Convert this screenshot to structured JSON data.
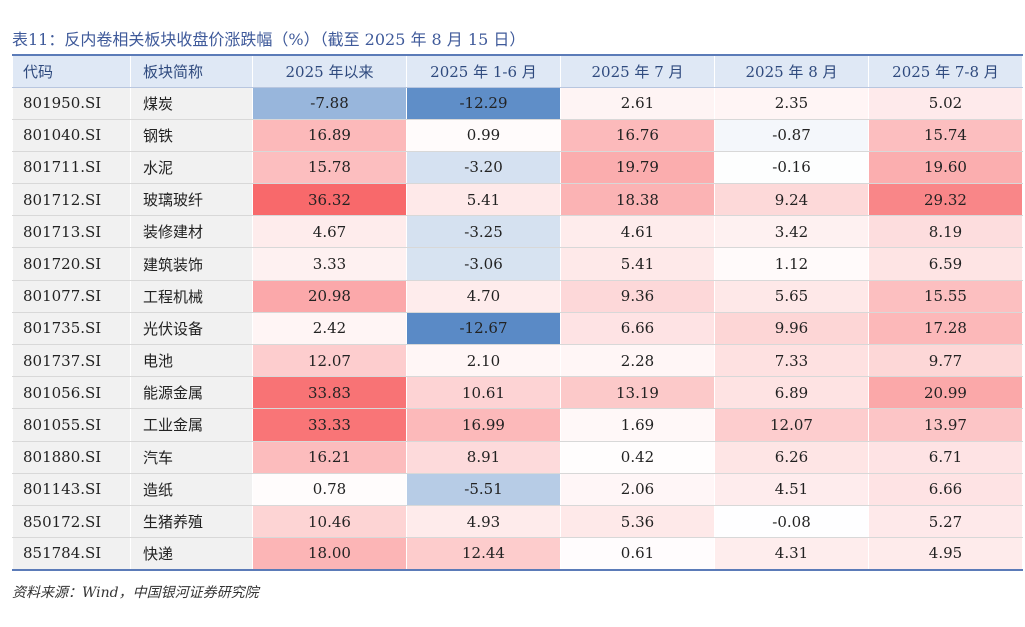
{
  "title": "表11：反内卷相关板块收盘价涨跌幅（%）（截至 2025 年 8 月 15 日）",
  "columns": [
    "代码",
    "板块简称",
    "2025 年以来",
    "2025 年 1-6 月",
    "2025 年 7 月",
    "2025 年 8 月",
    "2025 年 7-8 月"
  ],
  "rows": [
    {
      "code": "801950.SI",
      "name": "煤炭",
      "ytd": "-7.88",
      "h1": "-12.29",
      "jul": "2.61",
      "aug": "2.35",
      "julaug": "5.02"
    },
    {
      "code": "801040.SI",
      "name": "钢铁",
      "ytd": "16.89",
      "h1": "0.99",
      "jul": "16.76",
      "aug": "-0.87",
      "julaug": "15.74"
    },
    {
      "code": "801711.SI",
      "name": "水泥",
      "ytd": "15.78",
      "h1": "-3.20",
      "jul": "19.79",
      "aug": "-0.16",
      "julaug": "19.60"
    },
    {
      "code": "801712.SI",
      "name": "玻璃玻纤",
      "ytd": "36.32",
      "h1": "5.41",
      "jul": "18.38",
      "aug": "9.24",
      "julaug": "29.32"
    },
    {
      "code": "801713.SI",
      "name": "装修建材",
      "ytd": "4.67",
      "h1": "-3.25",
      "jul": "4.61",
      "aug": "3.42",
      "julaug": "8.19"
    },
    {
      "code": "801720.SI",
      "name": "建筑装饰",
      "ytd": "3.33",
      "h1": "-3.06",
      "jul": "5.41",
      "aug": "1.12",
      "julaug": "6.59"
    },
    {
      "code": "801077.SI",
      "name": "工程机械",
      "ytd": "20.98",
      "h1": "4.70",
      "jul": "9.36",
      "aug": "5.65",
      "julaug": "15.55"
    },
    {
      "code": "801735.SI",
      "name": "光伏设备",
      "ytd": "2.42",
      "h1": "-12.67",
      "jul": "6.66",
      "aug": "9.96",
      "julaug": "17.28"
    },
    {
      "code": "801737.SI",
      "name": "电池",
      "ytd": "12.07",
      "h1": "2.10",
      "jul": "2.28",
      "aug": "7.33",
      "julaug": "9.77"
    },
    {
      "code": "801056.SI",
      "name": "能源金属",
      "ytd": "33.83",
      "h1": "10.61",
      "jul": "13.19",
      "aug": "6.89",
      "julaug": "20.99"
    },
    {
      "code": "801055.SI",
      "name": "工业金属",
      "ytd": "33.33",
      "h1": "16.99",
      "jul": "1.69",
      "aug": "12.07",
      "julaug": "13.97"
    },
    {
      "code": "801880.SI",
      "name": "汽车",
      "ytd": "16.21",
      "h1": "8.91",
      "jul": "0.42",
      "aug": "6.26",
      "julaug": "6.71"
    },
    {
      "code": "801143.SI",
      "name": "造纸",
      "ytd": "0.78",
      "h1": "-5.51",
      "jul": "2.06",
      "aug": "4.51",
      "julaug": "6.66"
    },
    {
      "code": "850172.SI",
      "name": "生猪养殖",
      "ytd": "10.46",
      "h1": "4.93",
      "jul": "5.36",
      "aug": "-0.08",
      "julaug": "5.27"
    },
    {
      "code": "851784.SI",
      "name": "快递",
      "ytd": "18.00",
      "h1": "12.44",
      "jul": "0.61",
      "aug": "4.31",
      "julaug": "4.95"
    }
  ],
  "heat_colors": {
    "positive_max": "#f8696b",
    "neutral": "#ffffff",
    "negative_max": "#5a8ac6"
  },
  "source": "资料来源：Wind，中国银河证券研究院"
}
